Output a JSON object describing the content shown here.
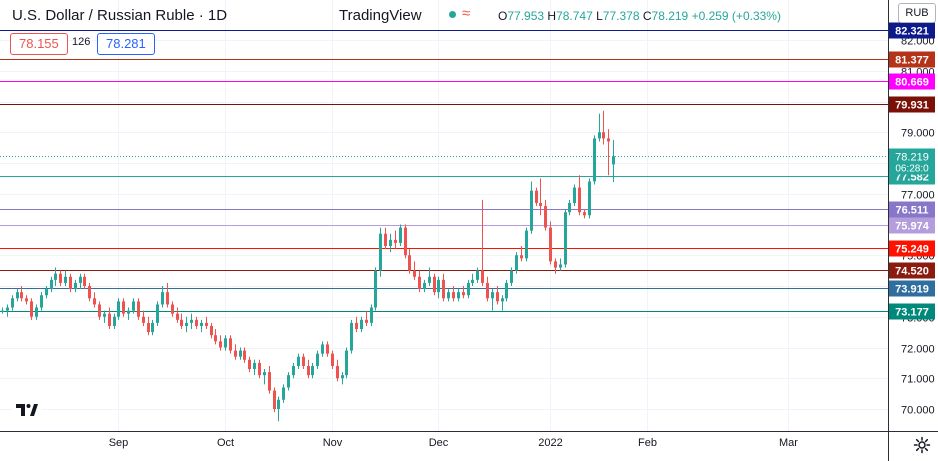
{
  "header": {
    "symbol_title": "U.S. Dollar / Russian Ruble · 1D",
    "brand": "TradingView",
    "ohlc": {
      "o_label": "O",
      "o": "77.953",
      "h_label": "H",
      "h": "78.747",
      "l_label": "L",
      "l": "77.378",
      "c_label": "C",
      "c": "78.219",
      "change": "+0.259 (+0.33%)"
    },
    "currency_button": "RUB"
  },
  "quote": {
    "bid": "78.155",
    "spread": "126",
    "ask": "78.281"
  },
  "colors": {
    "up": "#26a69a",
    "down": "#ef5350",
    "axis_text": "#131722",
    "grid": "#f0f3fa"
  },
  "chart_data": {
    "type": "candlestick",
    "symbol": "USDRUB",
    "interval": "1D",
    "y_axis": {
      "ticks": [
        70,
        71,
        72,
        73,
        74,
        75,
        76,
        77,
        78,
        79,
        80,
        81,
        82
      ],
      "tick_labels": [
        "70.000",
        "71.000",
        "72.000",
        "73.000",
        "74.000",
        "75.000",
        "76.000",
        "77.000",
        "78.000",
        "79.000",
        "80.000",
        "81.000",
        "82.000"
      ],
      "range": [
        69.3,
        82.8
      ]
    },
    "x_axis": {
      "labels": [
        "Sep",
        "Oct",
        "Nov",
        "Dec",
        "2022",
        "Feb",
        "Mar"
      ],
      "label_bar_index": [
        24,
        46,
        68,
        90,
        113,
        133,
        162
      ]
    },
    "last_price": {
      "value": 78.219,
      "label": "78.219",
      "countdown": "06:28:0",
      "color": "#26a69a"
    },
    "horizontal_levels": [
      {
        "value": 82.321,
        "label": "82.321",
        "color": "#0d1a8c"
      },
      {
        "value": 81.377,
        "label": "81.377",
        "color": "#b53319"
      },
      {
        "value": 80.669,
        "label": "80.669",
        "color": "#ff00ff"
      },
      {
        "value": 79.931,
        "label": "79.931",
        "color": "#7a1006"
      },
      {
        "value": 77.582,
        "label": "77.582",
        "color": "#26a69a"
      },
      {
        "value": 76.511,
        "label": "76.511",
        "color": "#8877c9"
      },
      {
        "value": 75.974,
        "label": "75.974",
        "color": "#b39ddb"
      },
      {
        "value": 75.249,
        "label": "75.249",
        "color": "#ff1100"
      },
      {
        "value": 74.52,
        "label": "74.520",
        "color": "#8b1a10"
      },
      {
        "value": 73.919,
        "label": "73.919",
        "color": "#2f6f9f"
      },
      {
        "value": 73.177,
        "label": "73.177",
        "color": "#00897b"
      }
    ],
    "candles": [
      [
        73.2,
        73.3,
        73.1,
        73.2
      ],
      [
        73.2,
        73.4,
        73.0,
        73.3
      ],
      [
        73.3,
        73.7,
        73.2,
        73.6
      ],
      [
        73.6,
        73.9,
        73.5,
        73.8
      ],
      [
        73.8,
        74.0,
        73.5,
        73.6
      ],
      [
        73.6,
        73.7,
        73.4,
        73.5
      ],
      [
        73.5,
        73.6,
        72.9,
        73.0
      ],
      [
        73.0,
        73.4,
        72.9,
        73.3
      ],
      [
        73.3,
        73.8,
        73.2,
        73.7
      ],
      [
        73.7,
        74.0,
        73.6,
        73.9
      ],
      [
        73.9,
        74.3,
        73.8,
        74.2
      ],
      [
        74.2,
        74.6,
        74.0,
        74.4
      ],
      [
        74.4,
        74.5,
        74.0,
        74.1
      ],
      [
        74.1,
        74.5,
        74.0,
        74.3
      ],
      [
        74.3,
        74.4,
        73.8,
        73.9
      ],
      [
        73.9,
        74.2,
        73.8,
        74.1
      ],
      [
        74.1,
        74.4,
        73.9,
        74.3
      ],
      [
        74.3,
        74.4,
        73.9,
        74.0
      ],
      [
        74.0,
        74.1,
        73.5,
        73.6
      ],
      [
        73.6,
        73.8,
        73.3,
        73.4
      ],
      [
        73.4,
        73.5,
        72.9,
        73.0
      ],
      [
        73.0,
        73.2,
        72.8,
        73.1
      ],
      [
        73.1,
        73.3,
        72.6,
        72.7
      ],
      [
        72.7,
        73.1,
        72.6,
        73.0
      ],
      [
        73.0,
        73.6,
        72.9,
        73.5
      ],
      [
        73.5,
        73.6,
        73.0,
        73.1
      ],
      [
        73.1,
        73.3,
        72.9,
        73.2
      ],
      [
        73.2,
        73.6,
        73.1,
        73.5
      ],
      [
        73.5,
        73.6,
        72.9,
        73.0
      ],
      [
        73.0,
        73.2,
        72.7,
        72.8
      ],
      [
        72.8,
        73.0,
        72.4,
        72.5
      ],
      [
        72.5,
        72.9,
        72.4,
        72.8
      ],
      [
        72.8,
        73.5,
        72.7,
        73.4
      ],
      [
        73.4,
        74.0,
        73.3,
        73.8
      ],
      [
        73.8,
        74.1,
        73.3,
        73.4
      ],
      [
        73.4,
        73.5,
        73.0,
        73.1
      ],
      [
        73.1,
        73.3,
        72.8,
        72.9
      ],
      [
        72.9,
        73.1,
        72.6,
        72.7
      ],
      [
        72.7,
        73.0,
        72.5,
        72.8
      ],
      [
        72.8,
        73.1,
        72.6,
        72.9
      ],
      [
        72.9,
        73.0,
        72.6,
        72.7
      ],
      [
        72.7,
        72.9,
        72.5,
        72.8
      ],
      [
        72.8,
        73.0,
        72.6,
        72.7
      ],
      [
        72.7,
        72.8,
        72.3,
        72.4
      ],
      [
        72.4,
        72.6,
        72.1,
        72.2
      ],
      [
        72.2,
        72.4,
        71.9,
        72.0
      ],
      [
        72.0,
        72.4,
        71.9,
        72.3
      ],
      [
        72.3,
        72.4,
        71.8,
        71.9
      ],
      [
        71.9,
        72.1,
        71.6,
        71.7
      ],
      [
        71.7,
        72.0,
        71.6,
        71.9
      ],
      [
        71.9,
        72.0,
        71.5,
        71.6
      ],
      [
        71.6,
        71.7,
        71.2,
        71.3
      ],
      [
        71.3,
        71.6,
        71.1,
        71.5
      ],
      [
        71.5,
        71.6,
        71.0,
        71.1
      ],
      [
        71.1,
        71.3,
        70.8,
        71.2
      ],
      [
        71.2,
        71.4,
        70.5,
        70.6
      ],
      [
        70.6,
        70.7,
        69.9,
        70.0
      ],
      [
        70.0,
        70.4,
        69.6,
        70.3
      ],
      [
        70.3,
        70.8,
        70.2,
        70.7
      ],
      [
        70.7,
        71.2,
        70.6,
        71.1
      ],
      [
        71.1,
        71.5,
        71.0,
        71.4
      ],
      [
        71.4,
        71.8,
        71.3,
        71.7
      ],
      [
        71.7,
        71.8,
        71.3,
        71.4
      ],
      [
        71.4,
        71.6,
        71.0,
        71.1
      ],
      [
        71.1,
        71.5,
        71.0,
        71.4
      ],
      [
        71.4,
        71.9,
        71.3,
        71.8
      ],
      [
        71.8,
        72.2,
        71.7,
        72.1
      ],
      [
        72.1,
        72.2,
        71.7,
        71.8
      ],
      [
        71.8,
        71.9,
        71.3,
        71.4
      ],
      [
        71.4,
        71.6,
        70.9,
        71.0
      ],
      [
        71.0,
        71.2,
        70.8,
        71.1
      ],
      [
        71.1,
        72.0,
        71.0,
        71.9
      ],
      [
        71.9,
        72.9,
        71.8,
        72.8
      ],
      [
        72.8,
        73.0,
        72.5,
        72.6
      ],
      [
        72.6,
        73.0,
        72.5,
        72.9
      ],
      [
        72.9,
        73.2,
        72.7,
        72.8
      ],
      [
        72.8,
        73.4,
        72.7,
        73.3
      ],
      [
        73.3,
        74.6,
        73.2,
        74.5
      ],
      [
        74.5,
        75.9,
        74.3,
        75.7
      ],
      [
        75.7,
        75.9,
        75.2,
        75.3
      ],
      [
        75.3,
        75.7,
        75.1,
        75.5
      ],
      [
        75.5,
        75.8,
        75.2,
        75.4
      ],
      [
        75.4,
        76.0,
        75.3,
        75.9
      ],
      [
        75.9,
        76.0,
        74.9,
        75.0
      ],
      [
        75.0,
        75.2,
        74.4,
        74.5
      ],
      [
        74.5,
        74.8,
        74.2,
        74.3
      ],
      [
        74.3,
        74.5,
        73.8,
        73.9
      ],
      [
        73.9,
        74.2,
        73.8,
        74.1
      ],
      [
        74.1,
        74.6,
        74.0,
        74.3
      ],
      [
        74.3,
        74.4,
        73.7,
        73.8
      ],
      [
        73.8,
        74.3,
        73.6,
        74.2
      ],
      [
        74.2,
        74.4,
        73.5,
        73.6
      ],
      [
        73.6,
        73.9,
        73.5,
        73.8
      ],
      [
        73.8,
        74.0,
        73.5,
        73.6
      ],
      [
        73.6,
        73.9,
        73.5,
        73.8
      ],
      [
        73.8,
        74.0,
        73.6,
        73.7
      ],
      [
        73.7,
        74.2,
        73.6,
        74.1
      ],
      [
        74.1,
        74.4,
        74.0,
        74.2
      ],
      [
        74.2,
        74.6,
        74.1,
        74.5
      ],
      [
        74.5,
        76.8,
        74.0,
        74.1
      ],
      [
        74.1,
        74.3,
        73.5,
        73.6
      ],
      [
        73.6,
        73.9,
        73.2,
        73.8
      ],
      [
        73.8,
        74.0,
        73.4,
        73.5
      ],
      [
        73.5,
        73.7,
        73.2,
        73.6
      ],
      [
        73.6,
        74.2,
        73.5,
        74.1
      ],
      [
        74.1,
        74.6,
        74.0,
        74.5
      ],
      [
        74.5,
        75.1,
        74.4,
        75.0
      ],
      [
        75.0,
        75.3,
        74.8,
        74.9
      ],
      [
        74.9,
        75.9,
        74.8,
        75.8
      ],
      [
        75.8,
        77.4,
        75.7,
        77.1
      ],
      [
        77.1,
        77.2,
        76.6,
        76.7
      ],
      [
        76.7,
        77.5,
        76.3,
        76.6
      ],
      [
        76.6,
        76.8,
        75.8,
        75.9
      ],
      [
        75.9,
        76.1,
        74.7,
        74.8
      ],
      [
        74.8,
        74.9,
        74.4,
        74.6
      ],
      [
        74.6,
        74.9,
        74.5,
        74.7
      ],
      [
        74.7,
        76.5,
        74.6,
        76.4
      ],
      [
        76.4,
        76.8,
        76.3,
        76.7
      ],
      [
        76.7,
        77.3,
        76.6,
        77.2
      ],
      [
        77.2,
        77.6,
        76.3,
        76.4
      ],
      [
        76.4,
        76.5,
        76.2,
        76.3
      ],
      [
        76.3,
        77.5,
        76.2,
        77.4
      ],
      [
        77.4,
        78.9,
        77.3,
        78.8
      ],
      [
        78.8,
        79.6,
        78.7,
        79.0
      ],
      [
        79.0,
        79.7,
        78.6,
        78.8
      ],
      [
        78.8,
        79.1,
        77.6,
        78.7
      ],
      [
        77.953,
        78.747,
        77.378,
        78.219
      ]
    ]
  }
}
